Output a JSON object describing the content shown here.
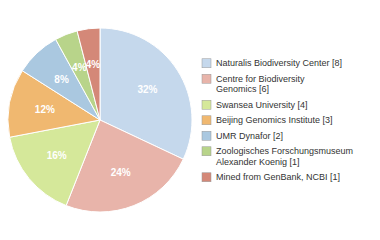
{
  "chart_data": {
    "type": "pie",
    "categories": [
      "Naturalis Biodiversity Center [8]",
      "Centre for Biodiversity\nGenomics [6]",
      "Swansea University [4]",
      "Beijing Genomics Institute [3]",
      "UMR Dynafor [2]",
      "Zoologisches Forschungsmuseum\nAlexander Koenig [1]",
      "Mined from GenBank, NCBI [1]"
    ],
    "values": [
      32,
      24,
      16,
      12,
      8,
      4,
      4
    ],
    "value_labels": [
      "32%",
      "24%",
      "16%",
      "12%",
      "8%",
      "4%",
      "4%"
    ],
    "colors": [
      "#c5d8ec",
      "#e8b4aa",
      "#d5e89a",
      "#f0b870",
      "#aac8e0",
      "#b8d48a",
      "#d48878"
    ],
    "data_labels": true,
    "legend": "right"
  }
}
